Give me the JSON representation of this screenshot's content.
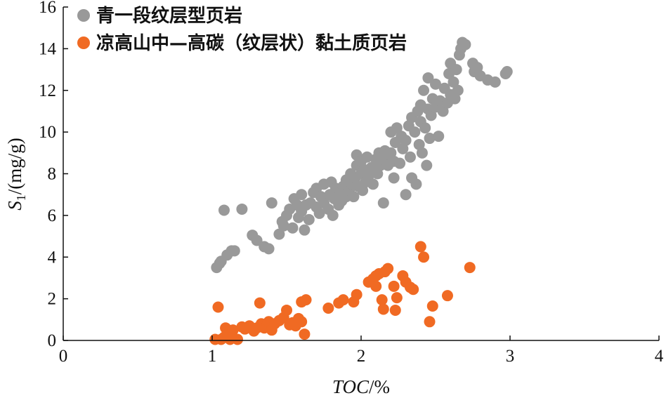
{
  "chart_data": {
    "type": "scatter",
    "xlabel": {
      "main": "TOC",
      "sep": "/",
      "unit": "%"
    },
    "ylabel": {
      "main": "S",
      "sub": "1",
      "unit": "/(mg/g)"
    },
    "xlim": [
      0,
      4
    ],
    "ylim": [
      0,
      16
    ],
    "xticks": [
      "0",
      "1",
      "2",
      "3",
      "4"
    ],
    "yticks": [
      "0",
      "2",
      "4",
      "6",
      "8",
      "10",
      "12",
      "14",
      "16"
    ],
    "grid": false,
    "legend_position": "top-left",
    "series": [
      {
        "name": "青一段纹层型页岩",
        "color": "#999999",
        "points": [
          [
            1.03,
            3.5
          ],
          [
            1.05,
            3.7
          ],
          [
            1.06,
            3.8
          ],
          [
            1.08,
            6.25
          ],
          [
            1.1,
            4.1
          ],
          [
            1.13,
            4.3
          ],
          [
            1.15,
            4.3
          ],
          [
            1.2,
            6.3
          ],
          [
            1.27,
            5.05
          ],
          [
            1.3,
            4.8
          ],
          [
            1.35,
            4.5
          ],
          [
            1.38,
            4.4
          ],
          [
            1.4,
            6.6
          ],
          [
            1.45,
            5.1
          ],
          [
            1.47,
            5.7
          ],
          [
            1.48,
            5.5
          ],
          [
            1.5,
            6.0
          ],
          [
            1.52,
            6.3
          ],
          [
            1.54,
            5.4
          ],
          [
            1.55,
            6.8
          ],
          [
            1.57,
            6.5
          ],
          [
            1.58,
            5.9
          ],
          [
            1.6,
            7.0
          ],
          [
            1.6,
            6.2
          ],
          [
            1.62,
            5.3
          ],
          [
            1.63,
            6.5
          ],
          [
            1.65,
            5.8
          ],
          [
            1.66,
            6.6
          ],
          [
            1.68,
            7.1
          ],
          [
            1.7,
            6.4
          ],
          [
            1.7,
            7.3
          ],
          [
            1.72,
            6.1
          ],
          [
            1.73,
            6.9
          ],
          [
            1.75,
            6.6
          ],
          [
            1.75,
            7.5
          ],
          [
            1.78,
            6.3
          ],
          [
            1.79,
            7.0
          ],
          [
            1.8,
            7.6
          ],
          [
            1.81,
            6.0
          ],
          [
            1.82,
            6.8
          ],
          [
            1.83,
            7.3
          ],
          [
            1.85,
            6.5
          ],
          [
            1.86,
            7.1
          ],
          [
            1.87,
            6.7
          ],
          [
            1.88,
            7.4
          ],
          [
            1.9,
            6.9
          ],
          [
            1.9,
            7.7
          ],
          [
            1.92,
            7.2
          ],
          [
            1.93,
            8.0
          ],
          [
            1.94,
            7.5
          ],
          [
            1.95,
            6.9
          ],
          [
            1.96,
            7.8
          ],
          [
            1.97,
            8.4
          ],
          [
            1.97,
            8.9
          ],
          [
            1.98,
            7.4
          ],
          [
            2.0,
            8.0
          ],
          [
            2.0,
            8.6
          ],
          [
            2.01,
            7.2
          ],
          [
            2.02,
            8.2
          ],
          [
            2.03,
            7.6
          ],
          [
            2.04,
            8.8
          ],
          [
            2.05,
            7.9
          ],
          [
            2.07,
            8.3
          ],
          [
            2.08,
            7.5
          ],
          [
            2.1,
            8.7
          ],
          [
            2.11,
            8.0
          ],
          [
            2.12,
            9.0
          ],
          [
            2.13,
            8.4
          ],
          [
            2.14,
            8.7
          ],
          [
            2.15,
            6.6
          ],
          [
            2.16,
            9.1
          ],
          [
            2.17,
            8.9
          ],
          [
            2.18,
            8.4
          ],
          [
            2.2,
            9.0
          ],
          [
            2.2,
            10.0
          ],
          [
            2.22,
            7.8
          ],
          [
            2.22,
            8.6
          ],
          [
            2.23,
            9.5
          ],
          [
            2.24,
            10.2
          ],
          [
            2.26,
            8.5
          ],
          [
            2.27,
            9.8
          ],
          [
            2.28,
            9.2
          ],
          [
            2.3,
            7.0
          ],
          [
            2.3,
            9.6
          ],
          [
            2.32,
            10.3
          ],
          [
            2.33,
            8.8
          ],
          [
            2.34,
            7.8
          ],
          [
            2.34,
            10.7
          ],
          [
            2.36,
            10.0
          ],
          [
            2.37,
            7.5
          ],
          [
            2.38,
            11.0
          ],
          [
            2.39,
            9.4
          ],
          [
            2.4,
            10.5
          ],
          [
            2.4,
            11.3
          ],
          [
            2.41,
            9.0
          ],
          [
            2.42,
            12.0
          ],
          [
            2.43,
            10.2
          ],
          [
            2.44,
            8.4
          ],
          [
            2.45,
            11.1
          ],
          [
            2.45,
            12.6
          ],
          [
            2.46,
            9.7
          ],
          [
            2.47,
            10.8
          ],
          [
            2.48,
            11.6
          ],
          [
            2.5,
            12.3
          ],
          [
            2.5,
            11.2
          ],
          [
            2.52,
            9.8
          ],
          [
            2.53,
            11.5
          ],
          [
            2.55,
            11.0
          ],
          [
            2.56,
            12.1
          ],
          [
            2.58,
            11.4
          ],
          [
            2.59,
            12.8
          ],
          [
            2.6,
            11.8
          ],
          [
            2.6,
            13.3
          ],
          [
            2.62,
            12.4
          ],
          [
            2.63,
            11.6
          ],
          [
            2.64,
            13.0
          ],
          [
            2.65,
            12.0
          ],
          [
            2.66,
            13.7
          ],
          [
            2.67,
            14.0
          ],
          [
            2.68,
            14.3
          ],
          [
            2.7,
            14.2
          ],
          [
            2.75,
            13.3
          ],
          [
            2.76,
            12.9
          ],
          [
            2.78,
            13.1
          ],
          [
            2.8,
            12.7
          ],
          [
            2.85,
            12.5
          ],
          [
            2.9,
            12.4
          ],
          [
            2.97,
            12.8
          ],
          [
            2.98,
            12.9
          ]
        ]
      },
      {
        "name": "凉高山中—高碳（纹层状）黏土质页岩",
        "color": "#f06a23",
        "points": [
          [
            1.02,
            0.05
          ],
          [
            1.04,
            1.6
          ],
          [
            1.06,
            0.05
          ],
          [
            1.08,
            0.15
          ],
          [
            1.09,
            0.6
          ],
          [
            1.1,
            0.3
          ],
          [
            1.12,
            0.05
          ],
          [
            1.14,
            0.5
          ],
          [
            1.17,
            0.05
          ],
          [
            1.2,
            0.65
          ],
          [
            1.22,
            0.55
          ],
          [
            1.25,
            0.7
          ],
          [
            1.28,
            0.45
          ],
          [
            1.3,
            0.6
          ],
          [
            1.32,
            1.8
          ],
          [
            1.33,
            0.8
          ],
          [
            1.35,
            0.6
          ],
          [
            1.37,
            0.75
          ],
          [
            1.38,
            0.9
          ],
          [
            1.4,
            0.5
          ],
          [
            1.42,
            0.8
          ],
          [
            1.45,
            0.95
          ],
          [
            1.48,
            1.1
          ],
          [
            1.5,
            1.45
          ],
          [
            1.52,
            0.75
          ],
          [
            1.54,
            0.85
          ],
          [
            1.56,
            0.7
          ],
          [
            1.58,
            1.05
          ],
          [
            1.6,
            0.9
          ],
          [
            1.6,
            1.85
          ],
          [
            1.62,
            0.3
          ],
          [
            1.63,
            1.95
          ],
          [
            1.78,
            1.55
          ],
          [
            1.85,
            1.8
          ],
          [
            1.88,
            1.95
          ],
          [
            1.95,
            1.85
          ],
          [
            1.97,
            2.2
          ],
          [
            2.05,
            2.8
          ],
          [
            2.08,
            2.95
          ],
          [
            2.1,
            3.1
          ],
          [
            2.1,
            2.6
          ],
          [
            2.12,
            3.2
          ],
          [
            2.14,
            1.95
          ],
          [
            2.15,
            1.5
          ],
          [
            2.16,
            3.3
          ],
          [
            2.18,
            3.45
          ],
          [
            2.22,
            2.6
          ],
          [
            2.23,
            1.45
          ],
          [
            2.24,
            2.05
          ],
          [
            2.28,
            3.1
          ],
          [
            2.3,
            2.8
          ],
          [
            2.33,
            2.55
          ],
          [
            2.35,
            2.45
          ],
          [
            2.4,
            4.5
          ],
          [
            2.42,
            4.0
          ],
          [
            2.46,
            0.9
          ],
          [
            2.48,
            1.65
          ],
          [
            2.58,
            2.15
          ],
          [
            2.73,
            3.5
          ]
        ]
      }
    ]
  }
}
